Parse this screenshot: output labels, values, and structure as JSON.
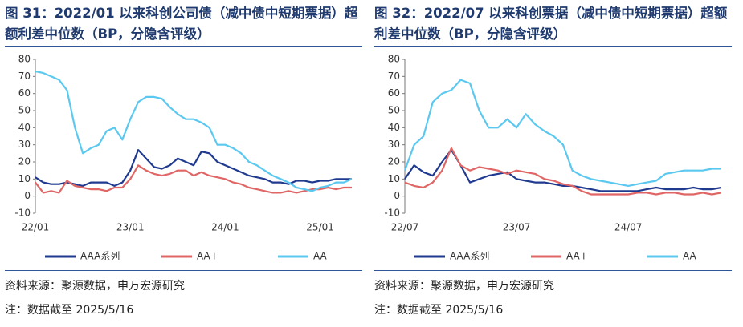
{
  "chart_data": [
    {
      "type": "line",
      "title": "图 31：2022/01 以来科创公司债（减中债中短期票据）超额利差中位数（BP，分隐含评级）",
      "x": [
        "22/01",
        "22/02",
        "22/03",
        "22/04",
        "22/05",
        "22/06",
        "22/07",
        "22/08",
        "22/09",
        "22/10",
        "22/11",
        "22/12",
        "23/01",
        "23/02",
        "23/03",
        "23/04",
        "23/05",
        "23/06",
        "23/07",
        "23/08",
        "23/09",
        "23/10",
        "23/11",
        "23/12",
        "24/01",
        "24/02",
        "24/03",
        "24/04",
        "24/05",
        "24/06",
        "24/07",
        "24/08",
        "24/09",
        "24/10",
        "24/11",
        "24/12",
        "25/01",
        "25/02",
        "25/03",
        "25/04",
        "25/05"
      ],
      "xticks": [
        "22/01",
        "23/01",
        "24/01",
        "25/01"
      ],
      "ylim": [
        -10,
        80
      ],
      "yticks": [
        -10,
        0,
        10,
        20,
        30,
        40,
        50,
        60,
        70,
        80
      ],
      "series": [
        {
          "name": "AAA系列",
          "color": "#1f3a8f",
          "values": [
            11,
            8,
            7,
            7,
            8,
            7,
            6,
            8,
            8,
            8,
            6,
            8,
            15,
            27,
            22,
            17,
            16,
            18,
            22,
            20,
            18,
            26,
            25,
            20,
            18,
            16,
            14,
            12,
            11,
            10,
            8,
            8,
            7,
            9,
            9,
            8,
            9,
            9,
            10,
            10,
            10
          ]
        },
        {
          "name": "AA+",
          "color": "#e06666",
          "values": [
            8,
            2,
            3,
            2,
            9,
            6,
            5,
            4,
            4,
            3,
            5,
            5,
            10,
            18,
            15,
            13,
            12,
            13,
            15,
            15,
            12,
            14,
            12,
            11,
            10,
            8,
            7,
            5,
            4,
            3,
            2,
            2,
            3,
            2,
            3,
            4,
            4,
            5,
            4,
            5,
            5
          ]
        },
        {
          "name": "AA",
          "color": "#5bc8f0",
          "values": [
            73,
            72,
            70,
            68,
            62,
            40,
            25,
            28,
            30,
            38,
            40,
            33,
            45,
            55,
            58,
            58,
            57,
            52,
            48,
            45,
            45,
            43,
            40,
            30,
            30,
            28,
            25,
            20,
            18,
            15,
            12,
            10,
            8,
            5,
            4,
            3,
            5,
            6,
            8,
            8,
            10
          ]
        }
      ],
      "source": "资料来源：聚源数据，申万宏源研究",
      "note": "注：数据截至 2025/5/16"
    },
    {
      "type": "line",
      "title": "图 32：2022/07 以来科创票据（减中债中短期票据）超额利差中位数（BP，分隐含评级）",
      "x": [
        "22/07",
        "22/08",
        "22/09",
        "22/10",
        "22/11",
        "22/12",
        "23/01",
        "23/02",
        "23/03",
        "23/04",
        "23/05",
        "23/06",
        "23/07",
        "23/08",
        "23/09",
        "23/10",
        "23/11",
        "23/12",
        "24/01",
        "24/02",
        "24/03",
        "24/04",
        "24/05",
        "24/06",
        "24/07",
        "24/08",
        "24/09",
        "24/10",
        "24/11",
        "24/12",
        "25/01",
        "25/02",
        "25/03",
        "25/04",
        "25/05"
      ],
      "xticks": [
        "22/07",
        "23/07",
        "24/07"
      ],
      "ylim": [
        -10,
        80
      ],
      "yticks": [
        -10,
        0,
        10,
        20,
        30,
        40,
        50,
        60,
        70,
        80
      ],
      "series": [
        {
          "name": "AAA系列",
          "color": "#1f3a8f",
          "values": [
            10,
            18,
            14,
            12,
            20,
            27,
            18,
            8,
            10,
            12,
            13,
            14,
            10,
            9,
            8,
            8,
            7,
            6,
            6,
            5,
            4,
            3,
            3,
            3,
            3,
            3,
            4,
            5,
            4,
            4,
            4,
            5,
            4,
            4,
            5
          ]
        },
        {
          "name": "AA+",
          "color": "#e06666",
          "values": [
            8,
            6,
            5,
            8,
            15,
            28,
            18,
            15,
            17,
            16,
            15,
            13,
            15,
            14,
            13,
            10,
            9,
            7,
            6,
            3,
            1,
            1,
            1,
            1,
            1,
            2,
            2,
            1,
            2,
            2,
            1,
            1,
            2,
            1,
            2
          ]
        },
        {
          "name": "AA",
          "color": "#5bc8f0",
          "values": [
            15,
            30,
            35,
            55,
            60,
            62,
            68,
            66,
            50,
            40,
            40,
            45,
            40,
            48,
            42,
            38,
            35,
            30,
            15,
            12,
            10,
            9,
            8,
            7,
            6,
            7,
            8,
            9,
            13,
            14,
            15,
            15,
            15,
            16,
            16
          ]
        }
      ],
      "source": "资料来源：聚源数据，申万宏源研究",
      "note": "注：数据截至 2025/5/16"
    }
  ]
}
